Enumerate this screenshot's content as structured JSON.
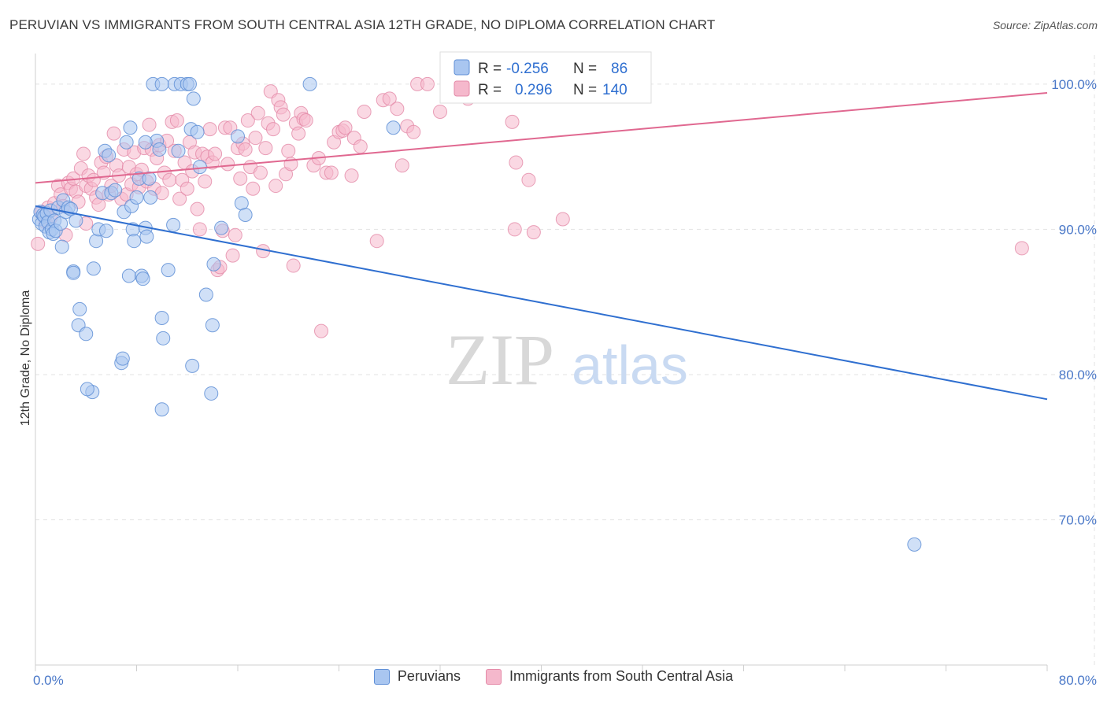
{
  "title": "PERUVIAN VS IMMIGRANTS FROM SOUTH CENTRAL ASIA 12TH GRADE, NO DIPLOMA CORRELATION CHART",
  "source": "Source: ZipAtlas.com",
  "watermark": {
    "zip": "ZIP",
    "atlas": "atlas"
  },
  "legend_box": [
    {
      "r_label": "R =",
      "r_value": "-0.256",
      "n_label": "N =",
      "n_value": "86"
    },
    {
      "r_label": "R =",
      "r_value": "0.296",
      "n_label": "N =",
      "n_value": "140"
    }
  ],
  "bottom_legend": [
    {
      "label": "Peruvians",
      "color": "#a9c6f0"
    },
    {
      "label": "Immigrants from South Central Asia",
      "color": "#f5b8cc"
    }
  ],
  "colors": {
    "blue_fill": "#a9c6f0",
    "blue_stroke": "#5f8fd6",
    "blue_line": "#2f6fd0",
    "pink_fill": "#f5b8cc",
    "pink_stroke": "#e48aa8",
    "pink_line": "#e06890",
    "tick_text": "#4a78c8",
    "grid": "#e3e3e3"
  },
  "chart_data": {
    "type": "scatter",
    "title": "PERUVIAN VS IMMIGRANTS FROM SOUTH CENTRAL ASIA 12TH GRADE, NO DIPLOMA CORRELATION CHART",
    "ylabel": "12th Grade, No Diploma",
    "xlabel": "",
    "xlim": [
      0,
      80
    ],
    "ylim": [
      60,
      102
    ],
    "x_tick_labels": [
      "0.0%",
      "80.0%"
    ],
    "y_ticks": [
      70,
      80,
      90,
      100
    ],
    "y_tick_labels": [
      "70.0%",
      "80.0%",
      "90.0%",
      "100.0%"
    ],
    "grid": true,
    "legend_placement": "top-center",
    "series": [
      {
        "name": "Peruvians",
        "r": -0.256,
        "n": 86,
        "trend": {
          "x": [
            0,
            80
          ],
          "y": [
            91.6,
            78.3
          ]
        },
        "points": [
          [
            0.3,
            90.7
          ],
          [
            0.4,
            91.2
          ],
          [
            0.5,
            90.4
          ],
          [
            0.6,
            91.0
          ],
          [
            0.7,
            90.9
          ],
          [
            0.8,
            90.2
          ],
          [
            0.9,
            91.1
          ],
          [
            1.0,
            90.5
          ],
          [
            1.1,
            89.8
          ],
          [
            1.2,
            91.3
          ],
          [
            1.3,
            90.0
          ],
          [
            1.4,
            89.7
          ],
          [
            1.5,
            90.6
          ],
          [
            1.6,
            89.9
          ],
          [
            1.8,
            91.5
          ],
          [
            2.0,
            90.4
          ],
          [
            2.1,
            88.8
          ],
          [
            2.2,
            92.0
          ],
          [
            2.4,
            91.2
          ],
          [
            2.6,
            91.5
          ],
          [
            2.8,
            91.4
          ],
          [
            3.0,
            87.1
          ],
          [
            3.2,
            90.6
          ],
          [
            3.5,
            84.5
          ],
          [
            3.4,
            83.4
          ],
          [
            4.0,
            82.8
          ],
          [
            4.5,
            78.8
          ],
          [
            4.6,
            87.3
          ],
          [
            4.8,
            89.2
          ],
          [
            5.0,
            90.0
          ],
          [
            5.3,
            92.5
          ],
          [
            5.6,
            89.9
          ],
          [
            5.5,
            95.4
          ],
          [
            5.8,
            95.1
          ],
          [
            6.0,
            92.5
          ],
          [
            6.3,
            92.7
          ],
          [
            6.8,
            80.8
          ],
          [
            6.9,
            81.1
          ],
          [
            7.0,
            91.2
          ],
          [
            7.2,
            96.0
          ],
          [
            7.4,
            86.8
          ],
          [
            7.5,
            97.0
          ],
          [
            7.6,
            91.6
          ],
          [
            7.7,
            90.0
          ],
          [
            7.8,
            89.2
          ],
          [
            8.0,
            92.2
          ],
          [
            8.2,
            93.5
          ],
          [
            8.4,
            86.8
          ],
          [
            8.5,
            86.6
          ],
          [
            8.7,
            90.1
          ],
          [
            8.8,
            89.5
          ],
          [
            9.0,
            93.5
          ],
          [
            9.1,
            92.2
          ],
          [
            9.3,
            100.0
          ],
          [
            9.6,
            96.1
          ],
          [
            9.8,
            95.5
          ],
          [
            10.0,
            83.9
          ],
          [
            10.1,
            82.5
          ],
          [
            10.5,
            87.2
          ],
          [
            10.9,
            90.3
          ],
          [
            11.3,
            95.4
          ],
          [
            11.0,
            100.0
          ],
          [
            11.5,
            100.0
          ],
          [
            10.0,
            100.0
          ],
          [
            12.0,
            100.0
          ],
          [
            12.2,
            100.0
          ],
          [
            12.3,
            96.9
          ],
          [
            12.4,
            80.6
          ],
          [
            12.5,
            99.0
          ],
          [
            12.8,
            96.7
          ],
          [
            13.0,
            94.3
          ],
          [
            13.5,
            85.5
          ],
          [
            13.9,
            78.7
          ],
          [
            14.0,
            83.4
          ],
          [
            14.1,
            87.6
          ],
          [
            14.7,
            90.1
          ],
          [
            16.0,
            96.4
          ],
          [
            16.3,
            91.8
          ],
          [
            16.6,
            91.0
          ],
          [
            10.0,
            77.6
          ],
          [
            21.7,
            100.0
          ],
          [
            28.3,
            97.0
          ],
          [
            8.7,
            96.0
          ],
          [
            3.0,
            87.0
          ],
          [
            4.1,
            79.0
          ],
          [
            69.5,
            68.3
          ]
        ]
      },
      {
        "name": "Immigrants from South Central Asia",
        "r": 0.296,
        "n": 140,
        "trend": {
          "x": [
            0,
            80
          ],
          "y": [
            93.2,
            99.4
          ]
        },
        "points": [
          [
            0.2,
            89.0
          ],
          [
            0.5,
            91.2
          ],
          [
            0.8,
            90.5
          ],
          [
            1.0,
            91.5
          ],
          [
            1.2,
            90.8
          ],
          [
            1.5,
            91.8
          ],
          [
            1.8,
            93.0
          ],
          [
            2.0,
            92.4
          ],
          [
            2.2,
            91.6
          ],
          [
            2.4,
            89.6
          ],
          [
            2.6,
            93.2
          ],
          [
            2.8,
            92.8
          ],
          [
            3.0,
            93.5
          ],
          [
            3.2,
            92.6
          ],
          [
            3.4,
            91.9
          ],
          [
            3.6,
            94.2
          ],
          [
            3.8,
            95.2
          ],
          [
            4.0,
            93.0
          ],
          [
            4.2,
            93.7
          ],
          [
            4.4,
            92.8
          ],
          [
            4.6,
            93.4
          ],
          [
            4.8,
            92.2
          ],
          [
            5.0,
            91.7
          ],
          [
            5.2,
            94.6
          ],
          [
            5.4,
            93.9
          ],
          [
            5.6,
            95.0
          ],
          [
            5.8,
            92.4
          ],
          [
            6.0,
            93.0
          ],
          [
            6.2,
            96.6
          ],
          [
            6.4,
            94.4
          ],
          [
            6.6,
            93.7
          ],
          [
            6.8,
            92.1
          ],
          [
            7.0,
            95.5
          ],
          [
            7.2,
            92.4
          ],
          [
            7.4,
            94.3
          ],
          [
            7.6,
            93.1
          ],
          [
            7.8,
            95.3
          ],
          [
            8.0,
            93.8
          ],
          [
            8.2,
            92.9
          ],
          [
            8.4,
            94.1
          ],
          [
            8.6,
            95.6
          ],
          [
            8.8,
            93.3
          ],
          [
            9.0,
            97.2
          ],
          [
            9.2,
            95.5
          ],
          [
            9.4,
            92.8
          ],
          [
            9.6,
            94.9
          ],
          [
            9.8,
            95.8
          ],
          [
            10.0,
            92.5
          ],
          [
            10.2,
            93.9
          ],
          [
            10.4,
            96.1
          ],
          [
            10.6,
            93.4
          ],
          [
            10.8,
            97.4
          ],
          [
            11.0,
            95.4
          ],
          [
            11.2,
            97.5
          ],
          [
            11.4,
            92.1
          ],
          [
            11.6,
            93.4
          ],
          [
            11.8,
            94.6
          ],
          [
            12.0,
            92.8
          ],
          [
            12.2,
            96.0
          ],
          [
            12.4,
            94.0
          ],
          [
            12.6,
            95.3
          ],
          [
            12.8,
            91.4
          ],
          [
            13.0,
            90.0
          ],
          [
            13.2,
            95.2
          ],
          [
            13.4,
            93.3
          ],
          [
            13.6,
            95.0
          ],
          [
            13.8,
            96.9
          ],
          [
            14.0,
            94.6
          ],
          [
            14.2,
            95.2
          ],
          [
            14.4,
            87.2
          ],
          [
            14.6,
            87.4
          ],
          [
            14.8,
            89.9
          ],
          [
            15.0,
            97.0
          ],
          [
            15.2,
            94.5
          ],
          [
            15.4,
            97.0
          ],
          [
            15.6,
            88.2
          ],
          [
            15.8,
            89.6
          ],
          [
            16.0,
            95.6
          ],
          [
            16.2,
            93.5
          ],
          [
            16.4,
            95.9
          ],
          [
            16.6,
            95.5
          ],
          [
            16.8,
            97.5
          ],
          [
            17.0,
            94.3
          ],
          [
            17.2,
            92.8
          ],
          [
            17.4,
            96.3
          ],
          [
            17.6,
            98.0
          ],
          [
            17.8,
            93.9
          ],
          [
            18.0,
            88.5
          ],
          [
            18.2,
            95.6
          ],
          [
            18.4,
            97.3
          ],
          [
            18.6,
            99.5
          ],
          [
            18.8,
            96.9
          ],
          [
            19.0,
            93.0
          ],
          [
            19.2,
            98.9
          ],
          [
            19.4,
            98.4
          ],
          [
            19.6,
            97.9
          ],
          [
            19.8,
            93.8
          ],
          [
            20.0,
            95.4
          ],
          [
            20.2,
            94.5
          ],
          [
            20.4,
            87.5
          ],
          [
            20.6,
            97.3
          ],
          [
            20.8,
            96.6
          ],
          [
            21.0,
            98.0
          ],
          [
            21.2,
            97.6
          ],
          [
            21.4,
            97.5
          ],
          [
            22.0,
            94.4
          ],
          [
            22.4,
            94.9
          ],
          [
            22.6,
            83.0
          ],
          [
            23.0,
            93.9
          ],
          [
            23.4,
            93.9
          ],
          [
            23.6,
            96.0
          ],
          [
            24.0,
            96.7
          ],
          [
            24.3,
            96.8
          ],
          [
            24.5,
            97.0
          ],
          [
            25.0,
            93.7
          ],
          [
            25.2,
            96.3
          ],
          [
            25.7,
            95.7
          ],
          [
            26.0,
            98.1
          ],
          [
            27.0,
            89.2
          ],
          [
            27.5,
            98.9
          ],
          [
            28.0,
            99.0
          ],
          [
            28.6,
            98.3
          ],
          [
            29.0,
            94.4
          ],
          [
            29.4,
            97.1
          ],
          [
            29.9,
            96.7
          ],
          [
            30.2,
            100.0
          ],
          [
            31.0,
            100.0
          ],
          [
            32.0,
            98.1
          ],
          [
            33.3,
            100.0
          ],
          [
            34.2,
            99.0
          ],
          [
            36.0,
            100.0
          ],
          [
            36.5,
            99.8
          ],
          [
            37.7,
            97.4
          ],
          [
            37.9,
            90.0
          ],
          [
            38.0,
            94.6
          ],
          [
            39.0,
            93.4
          ],
          [
            39.4,
            89.8
          ],
          [
            41.7,
            90.7
          ],
          [
            4.0,
            90.4
          ],
          [
            78.0,
            88.7
          ]
        ]
      }
    ]
  }
}
